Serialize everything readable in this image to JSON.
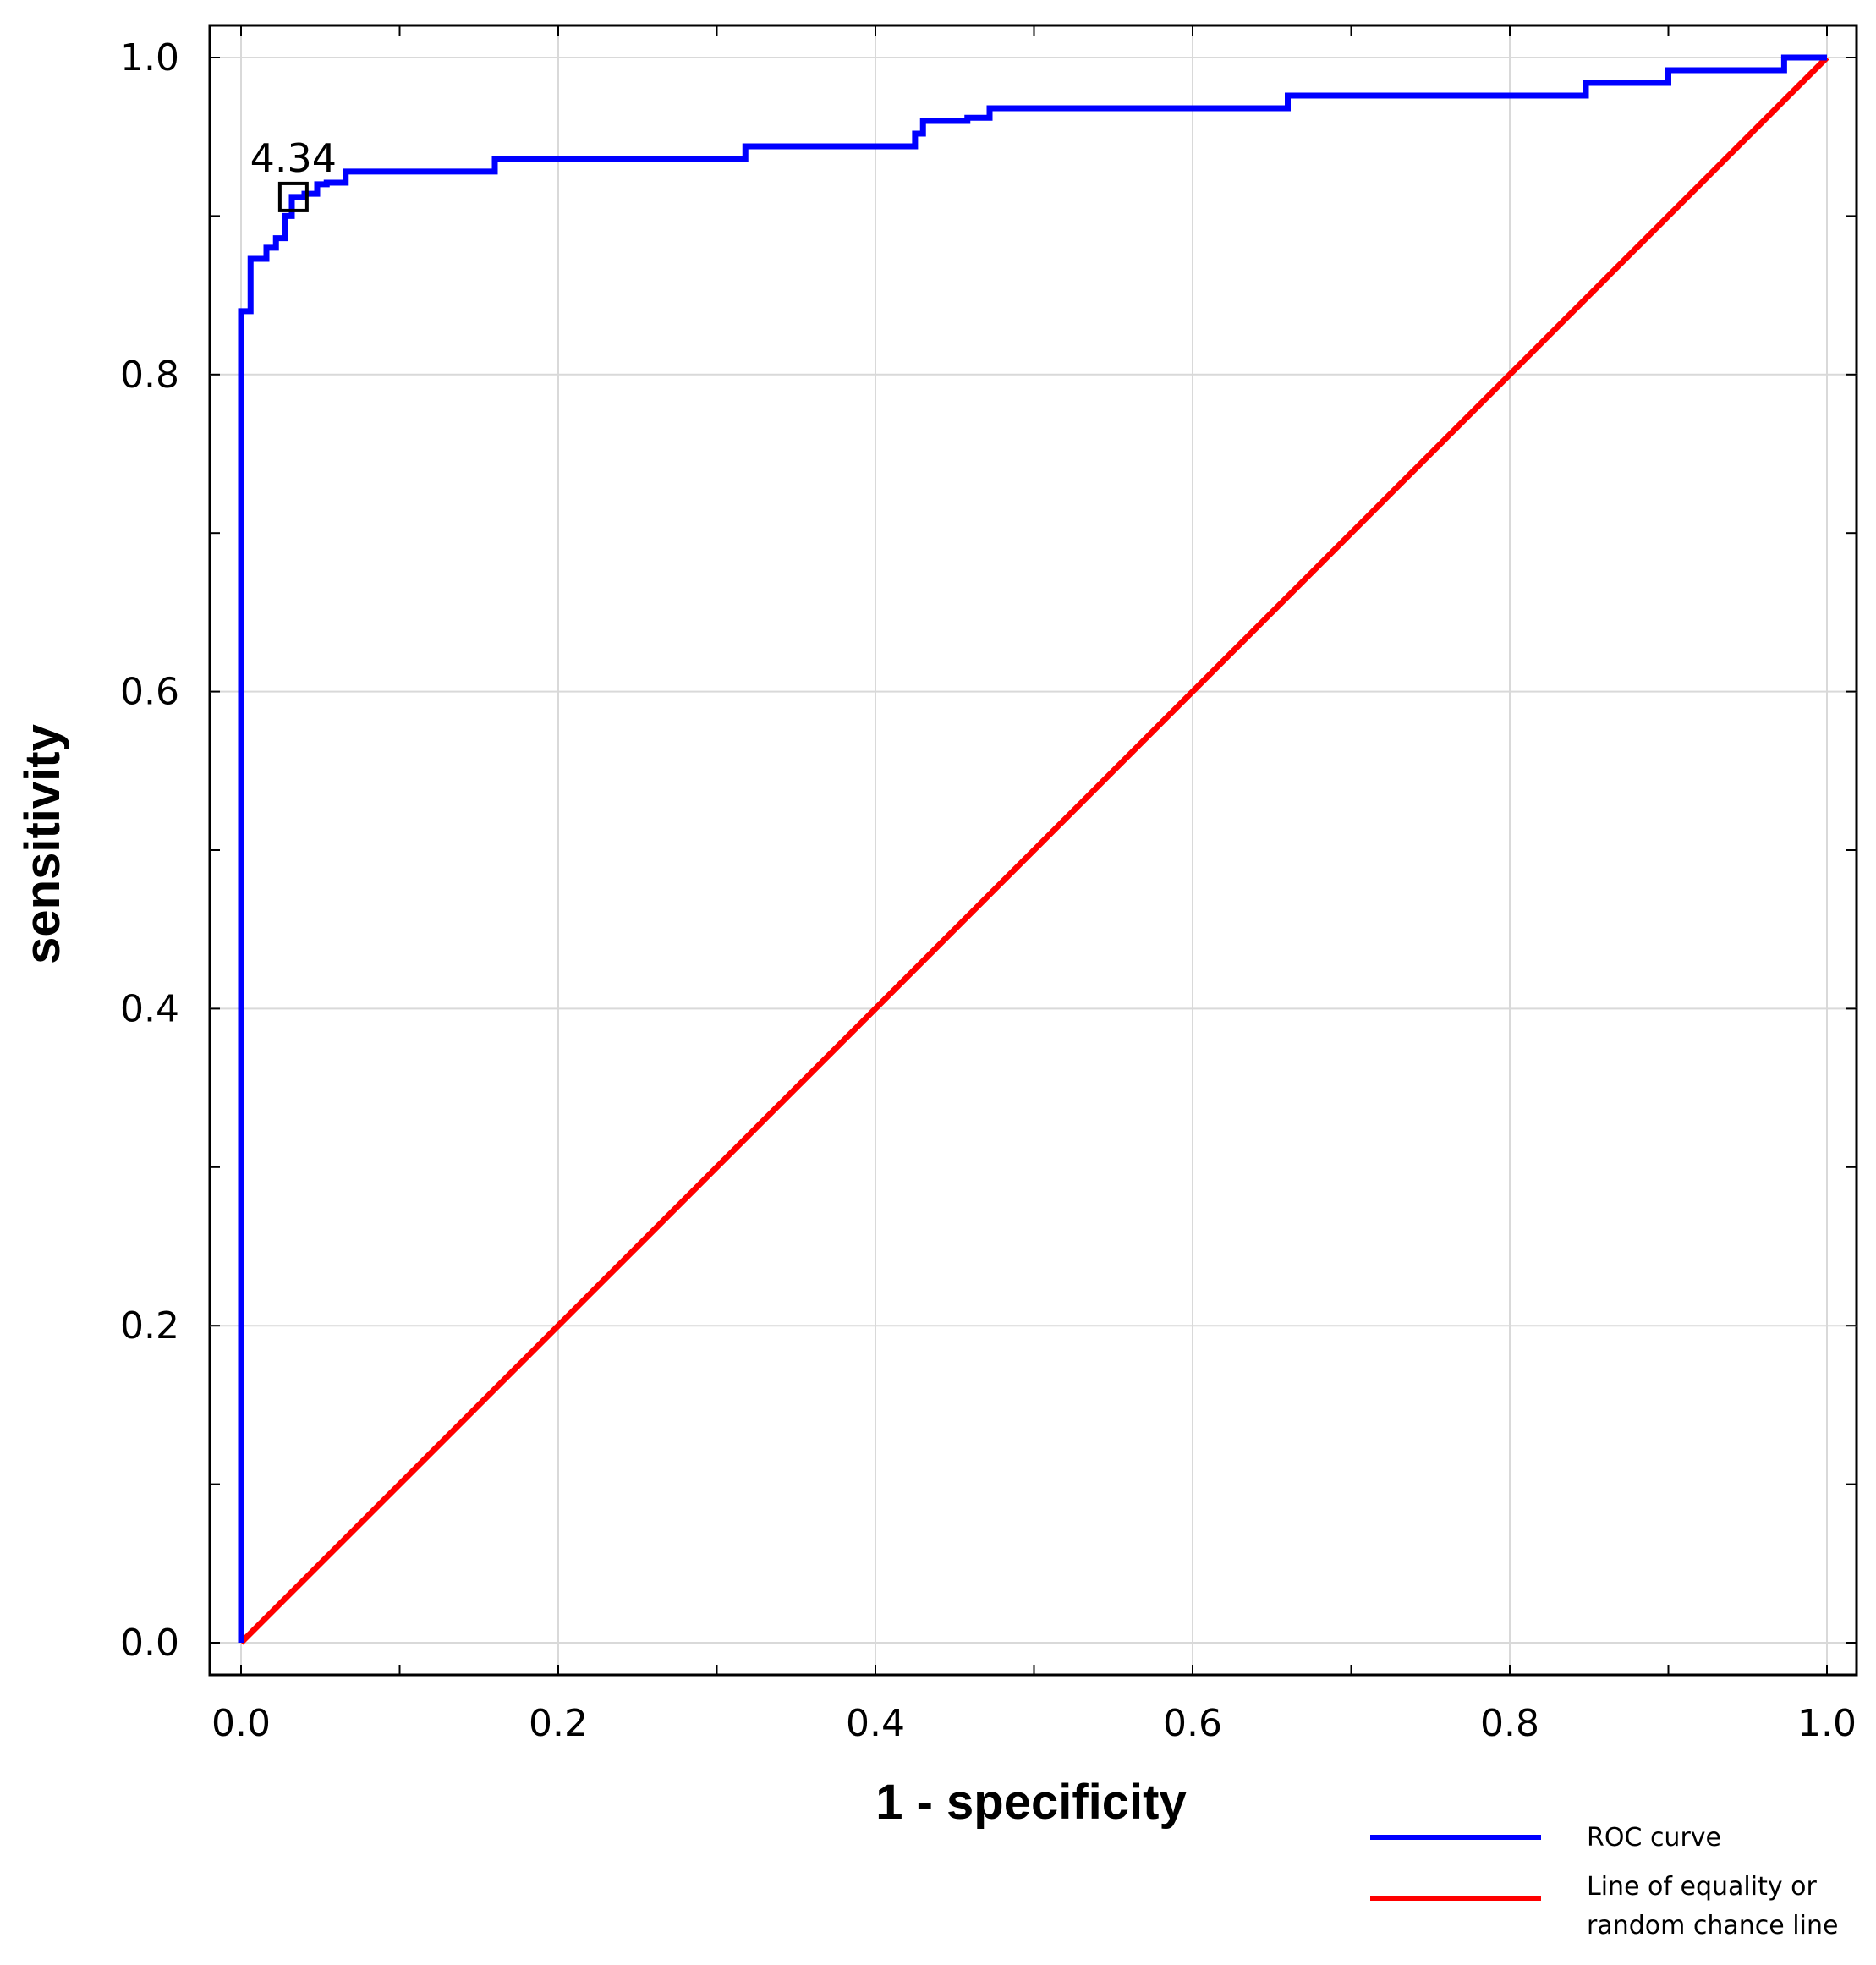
{
  "chart_data": {
    "type": "line",
    "title": "",
    "xlabel": "1 - specificity",
    "ylabel": "sensitivity",
    "xlim": [
      0,
      1
    ],
    "ylim": [
      0,
      1
    ],
    "x_ticks": [
      "0.0",
      "0.2",
      "0.4",
      "0.6",
      "0.8",
      "1.0"
    ],
    "y_ticks": [
      "0.0",
      "0.2",
      "0.4",
      "0.6",
      "0.8",
      "1.0"
    ],
    "grid": true,
    "legend_position": "bottom-right",
    "series": [
      {
        "name": "ROC curve",
        "color": "#0000ff",
        "x": [
          0,
          0,
          0.006,
          0.006,
          0.016,
          0.016,
          0.022,
          0.022,
          0.028,
          0.028,
          0.032,
          0.032,
          0.04,
          0.04,
          0.048,
          0.048,
          0.054,
          0.054,
          0.066,
          0.066,
          0.16,
          0.16,
          0.318,
          0.318,
          0.425,
          0.425,
          0.43,
          0.43,
          0.458,
          0.458,
          0.472,
          0.472,
          0.66,
          0.66,
          0.848,
          0.848,
          0.9,
          0.9,
          0.973,
          0.973,
          1.0
        ],
        "y": [
          0,
          0.84,
          0.84,
          0.873,
          0.873,
          0.88,
          0.88,
          0.886,
          0.886,
          0.9,
          0.9,
          0.912,
          0.912,
          0.914,
          0.914,
          0.92,
          0.92,
          0.921,
          0.921,
          0.928,
          0.928,
          0.936,
          0.936,
          0.944,
          0.944,
          0.952,
          0.952,
          0.96,
          0.96,
          0.962,
          0.962,
          0.968,
          0.968,
          0.976,
          0.976,
          0.984,
          0.984,
          0.992,
          0.992,
          1.0,
          1.0
        ]
      },
      {
        "name": "Line of equality or random chance line",
        "color": "#ff0000",
        "x": [
          0,
          1
        ],
        "y": [
          0,
          1
        ]
      }
    ],
    "annotations": [
      {
        "text": "4.34",
        "x": 0.033,
        "y": 0.912
      }
    ]
  },
  "legend": {
    "items": [
      {
        "label_lines": [
          "ROC curve"
        ],
        "color": "#0000ff"
      },
      {
        "label_lines": [
          "Line of equality or",
          "random chance line"
        ],
        "color": "#ff0000"
      }
    ]
  }
}
